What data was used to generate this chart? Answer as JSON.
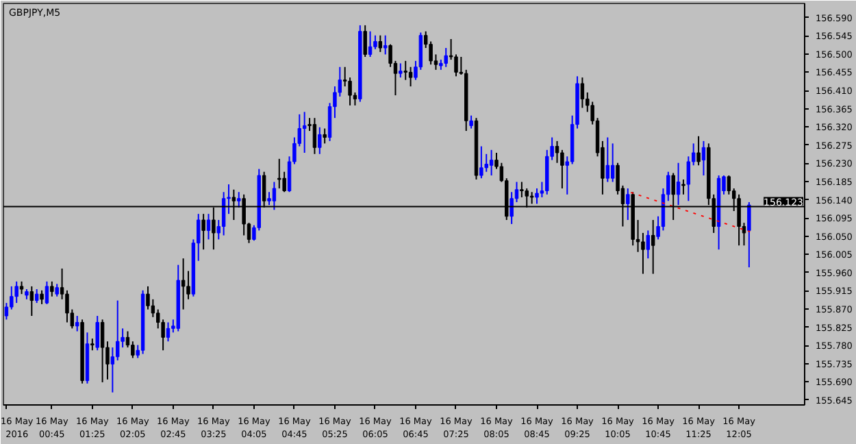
{
  "chart_data": {
    "type": "candlestick",
    "title": "GBPJPY,M5",
    "x": [
      "2016-05-16T00:00",
      "2016-05-16T00:05",
      "2016-05-16T00:10",
      "2016-05-16T00:15",
      "2016-05-16T00:20",
      "2016-05-16T00:25",
      "2016-05-16T00:30",
      "2016-05-16T00:35",
      "2016-05-16T00:40",
      "2016-05-16T00:45",
      "2016-05-16T00:50",
      "2016-05-16T00:55",
      "2016-05-16T01:00",
      "2016-05-16T01:05",
      "2016-05-16T01:10",
      "2016-05-16T01:15",
      "2016-05-16T01:20",
      "2016-05-16T01:25",
      "2016-05-16T01:30",
      "2016-05-16T01:35",
      "2016-05-16T01:40",
      "2016-05-16T01:45",
      "2016-05-16T01:50",
      "2016-05-16T01:55",
      "2016-05-16T02:00",
      "2016-05-16T02:05",
      "2016-05-16T02:10",
      "2016-05-16T02:15",
      "2016-05-16T02:20",
      "2016-05-16T02:25",
      "2016-05-16T02:30",
      "2016-05-16T02:35",
      "2016-05-16T02:40",
      "2016-05-16T02:45",
      "2016-05-16T02:50",
      "2016-05-16T02:55",
      "2016-05-16T03:00",
      "2016-05-16T03:05",
      "2016-05-16T03:10",
      "2016-05-16T03:15",
      "2016-05-16T03:20",
      "2016-05-16T03:25",
      "2016-05-16T03:30",
      "2016-05-16T03:35",
      "2016-05-16T03:40",
      "2016-05-16T03:45",
      "2016-05-16T03:50",
      "2016-05-16T03:55",
      "2016-05-16T04:00",
      "2016-05-16T04:05",
      "2016-05-16T04:10",
      "2016-05-16T04:15",
      "2016-05-16T04:20",
      "2016-05-16T04:25",
      "2016-05-16T04:30",
      "2016-05-16T04:35",
      "2016-05-16T04:40",
      "2016-05-16T04:45",
      "2016-05-16T04:50",
      "2016-05-16T04:55",
      "2016-05-16T05:00",
      "2016-05-16T05:05",
      "2016-05-16T05:10",
      "2016-05-16T05:15",
      "2016-05-16T05:20",
      "2016-05-16T05:25",
      "2016-05-16T05:30",
      "2016-05-16T05:35",
      "2016-05-16T05:40",
      "2016-05-16T05:45",
      "2016-05-16T05:50",
      "2016-05-16T05:55",
      "2016-05-16T06:00",
      "2016-05-16T06:05",
      "2016-05-16T06:10",
      "2016-05-16T06:15",
      "2016-05-16T06:20",
      "2016-05-16T06:25",
      "2016-05-16T06:30",
      "2016-05-16T06:35",
      "2016-05-16T06:40",
      "2016-05-16T06:45",
      "2016-05-16T06:50",
      "2016-05-16T06:55",
      "2016-05-16T07:00",
      "2016-05-16T07:05",
      "2016-05-16T07:10",
      "2016-05-16T07:15",
      "2016-05-16T07:20",
      "2016-05-16T07:25",
      "2016-05-16T07:30",
      "2016-05-16T07:35",
      "2016-05-16T07:40",
      "2016-05-16T07:45",
      "2016-05-16T07:50",
      "2016-05-16T07:55",
      "2016-05-16T08:00",
      "2016-05-16T08:05",
      "2016-05-16T08:10",
      "2016-05-16T08:15",
      "2016-05-16T08:20",
      "2016-05-16T08:25",
      "2016-05-16T08:30",
      "2016-05-16T08:35",
      "2016-05-16T08:40",
      "2016-05-16T08:45",
      "2016-05-16T08:50",
      "2016-05-16T08:55",
      "2016-05-16T09:00",
      "2016-05-16T09:05",
      "2016-05-16T09:10",
      "2016-05-16T09:15",
      "2016-05-16T09:20",
      "2016-05-16T09:25",
      "2016-05-16T09:30",
      "2016-05-16T09:35",
      "2016-05-16T09:40",
      "2016-05-16T09:45",
      "2016-05-16T09:50",
      "2016-05-16T09:55",
      "2016-05-16T10:00",
      "2016-05-16T10:05",
      "2016-05-16T10:10",
      "2016-05-16T10:15",
      "2016-05-16T10:20",
      "2016-05-16T10:25",
      "2016-05-16T10:30",
      "2016-05-16T10:35",
      "2016-05-16T10:40",
      "2016-05-16T10:45",
      "2016-05-16T10:50",
      "2016-05-16T10:55",
      "2016-05-16T11:00",
      "2016-05-16T11:05",
      "2016-05-16T11:10",
      "2016-05-16T11:15",
      "2016-05-16T11:20",
      "2016-05-16T11:25",
      "2016-05-16T11:30",
      "2016-05-16T11:35",
      "2016-05-16T11:40",
      "2016-05-16T11:45",
      "2016-05-16T11:50",
      "2016-05-16T11:55",
      "2016-05-16T12:00",
      "2016-05-16T12:05",
      "2016-05-16T12:10",
      "2016-05-16T12:15"
    ],
    "ohlc": [
      [
        155.853,
        155.885,
        155.844,
        155.875
      ],
      [
        155.875,
        155.926,
        155.869,
        155.901
      ],
      [
        155.901,
        155.938,
        155.885,
        155.926
      ],
      [
        155.926,
        155.938,
        155.907,
        155.919
      ],
      [
        155.904,
        155.919,
        155.894,
        155.913
      ],
      [
        155.913,
        155.926,
        155.853,
        155.891
      ],
      [
        155.891,
        155.919,
        155.885,
        155.907
      ],
      [
        155.907,
        155.916,
        155.882,
        155.894
      ],
      [
        155.885,
        155.938,
        155.882,
        155.926
      ],
      [
        155.926,
        155.938,
        155.901,
        155.913
      ],
      [
        155.907,
        155.932,
        155.901,
        155.923
      ],
      [
        155.923,
        155.97,
        155.894,
        155.907
      ],
      [
        155.907,
        155.916,
        155.837,
        155.86
      ],
      [
        155.86,
        155.869,
        155.822,
        155.828
      ],
      [
        155.828,
        155.853,
        155.815,
        155.837
      ],
      [
        155.837,
        155.844,
        155.686,
        155.693
      ],
      [
        155.693,
        155.812,
        155.686,
        155.784
      ],
      [
        155.784,
        155.797,
        155.768,
        155.781
      ],
      [
        155.775,
        155.853,
        155.768,
        155.837
      ],
      [
        155.837,
        155.844,
        155.689,
        155.775
      ],
      [
        155.775,
        155.79,
        155.696,
        155.734
      ],
      [
        155.734,
        155.775,
        155.664,
        155.752
      ],
      [
        155.752,
        155.891,
        155.743,
        155.79
      ],
      [
        155.79,
        155.822,
        155.775,
        155.8
      ],
      [
        155.8,
        155.815,
        155.775,
        155.781
      ],
      [
        155.781,
        155.79,
        155.749,
        155.756
      ],
      [
        155.756,
        155.781,
        155.749,
        155.768
      ],
      [
        155.768,
        155.916,
        155.759,
        155.907
      ],
      [
        155.907,
        155.926,
        155.869,
        155.878
      ],
      [
        155.878,
        155.894,
        155.85,
        155.86
      ],
      [
        155.86,
        155.869,
        155.822,
        155.837
      ],
      [
        155.837,
        155.844,
        155.768,
        155.8
      ],
      [
        155.8,
        155.837,
        155.79,
        155.822
      ],
      [
        155.822,
        155.844,
        155.812,
        155.828
      ],
      [
        155.822,
        155.979,
        155.815,
        155.941
      ],
      [
        155.941,
        155.995,
        155.869,
        155.926
      ],
      [
        155.926,
        155.964,
        155.894,
        155.907
      ],
      [
        155.907,
        156.042,
        155.901,
        156.033
      ],
      [
        156.033,
        156.105,
        155.989,
        156.09
      ],
      [
        156.09,
        156.105,
        156.017,
        156.064
      ],
      [
        156.064,
        156.105,
        156.042,
        156.09
      ],
      [
        156.09,
        156.121,
        156.017,
        156.058
      ],
      [
        156.058,
        156.09,
        156.042,
        156.074
      ],
      [
        156.074,
        156.159,
        156.052,
        156.143
      ],
      [
        156.143,
        156.178,
        156.105,
        156.146
      ],
      [
        156.146,
        156.165,
        156.09,
        156.137
      ],
      [
        156.137,
        156.159,
        156.121,
        156.143
      ],
      [
        156.143,
        156.153,
        156.052,
        156.08
      ],
      [
        156.08,
        156.083,
        156.033,
        156.042
      ],
      [
        156.042,
        156.077,
        156.039,
        156.071
      ],
      [
        156.071,
        156.216,
        156.064,
        156.2
      ],
      [
        156.2,
        156.209,
        156.121,
        156.137
      ],
      [
        156.137,
        156.159,
        156.127,
        156.143
      ],
      [
        156.137,
        156.184,
        156.115,
        156.168
      ],
      [
        156.193,
        156.241,
        156.168,
        156.19
      ],
      [
        156.193,
        156.209,
        156.159,
        156.162
      ],
      [
        156.162,
        156.247,
        156.159,
        156.234
      ],
      [
        156.234,
        156.294,
        156.228,
        156.279
      ],
      [
        156.279,
        156.351,
        156.272,
        156.316
      ],
      [
        156.316,
        156.357,
        156.256,
        156.323
      ],
      [
        156.326,
        156.342,
        156.31,
        156.323
      ],
      [
        156.326,
        156.342,
        156.253,
        156.269
      ],
      [
        156.269,
        156.319,
        156.253,
        156.301
      ],
      [
        156.301,
        156.316,
        156.279,
        156.294
      ],
      [
        156.294,
        156.379,
        156.285,
        156.37
      ],
      [
        156.37,
        156.42,
        156.342,
        156.405
      ],
      [
        156.405,
        156.468,
        156.395,
        156.436
      ],
      [
        156.436,
        156.468,
        156.42,
        156.433
      ],
      [
        156.433,
        156.442,
        156.373,
        156.398
      ],
      [
        156.398,
        156.405,
        156.373,
        156.389
      ],
      [
        156.389,
        156.571,
        156.382,
        156.556
      ],
      [
        156.556,
        156.571,
        156.493,
        156.499
      ],
      [
        156.499,
        156.556,
        156.493,
        156.518
      ],
      [
        156.518,
        156.546,
        156.512,
        156.531
      ],
      [
        156.531,
        156.546,
        156.505,
        156.515
      ],
      [
        156.515,
        156.546,
        156.499,
        156.521
      ],
      [
        156.521,
        156.524,
        156.468,
        156.477
      ],
      [
        156.477,
        156.483,
        156.398,
        156.452
      ],
      [
        156.452,
        156.477,
        156.442,
        156.458
      ],
      [
        156.458,
        156.483,
        156.436,
        156.455
      ],
      [
        156.455,
        156.468,
        156.42,
        156.442
      ],
      [
        156.442,
        156.483,
        156.436,
        156.468
      ],
      [
        156.468,
        156.553,
        156.461,
        156.546
      ],
      [
        156.546,
        156.556,
        156.515,
        156.524
      ],
      [
        156.524,
        156.531,
        156.474,
        156.483
      ],
      [
        156.483,
        156.499,
        156.461,
        156.474
      ],
      [
        156.471,
        156.486,
        156.461,
        156.477
      ],
      [
        156.477,
        156.515,
        156.468,
        156.496
      ],
      [
        156.496,
        156.537,
        156.486,
        156.493
      ],
      [
        156.493,
        156.499,
        156.445,
        156.455
      ],
      [
        156.455,
        156.493,
        156.449,
        156.452
      ],
      [
        156.452,
        156.461,
        156.31,
        156.335
      ],
      [
        156.323,
        156.348,
        156.316,
        156.335
      ],
      [
        156.335,
        156.342,
        156.19,
        156.2
      ],
      [
        156.2,
        156.272,
        156.193,
        156.219
      ],
      [
        156.219,
        156.253,
        156.209,
        156.228
      ],
      [
        156.225,
        156.263,
        156.2,
        156.238
      ],
      [
        156.238,
        156.256,
        156.216,
        156.222
      ],
      [
        156.222,
        156.231,
        156.184,
        156.187
      ],
      [
        156.187,
        156.193,
        156.09,
        156.099
      ],
      [
        156.099,
        156.159,
        156.08,
        156.143
      ],
      [
        156.143,
        156.184,
        156.134,
        156.165
      ],
      [
        156.165,
        156.184,
        156.146,
        156.162
      ],
      [
        156.162,
        156.168,
        156.121,
        156.149
      ],
      [
        156.149,
        156.159,
        156.13,
        156.146
      ],
      [
        156.146,
        156.168,
        156.13,
        156.156
      ],
      [
        156.156,
        156.184,
        156.146,
        156.162
      ],
      [
        156.162,
        156.263,
        156.153,
        156.247
      ],
      [
        156.247,
        156.294,
        156.238,
        156.272
      ],
      [
        156.272,
        156.285,
        156.231,
        156.256
      ],
      [
        156.256,
        156.263,
        156.168,
        156.225
      ],
      [
        156.225,
        156.247,
        156.153,
        156.234
      ],
      [
        156.234,
        156.348,
        156.228,
        156.326
      ],
      [
        156.326,
        156.445,
        156.316,
        156.427
      ],
      [
        156.427,
        156.442,
        156.367,
        156.389
      ],
      [
        156.389,
        156.405,
        156.357,
        156.373
      ],
      [
        156.373,
        156.382,
        156.326,
        156.335
      ],
      [
        156.335,
        156.342,
        156.247,
        156.256
      ],
      [
        156.269,
        156.285,
        156.153,
        156.193
      ],
      [
        156.193,
        156.294,
        156.184,
        156.225
      ],
      [
        156.193,
        156.279,
        156.184,
        156.225
      ],
      [
        156.225,
        156.231,
        156.153,
        156.162
      ],
      [
        156.168,
        156.175,
        156.074,
        156.13
      ],
      [
        156.13,
        156.168,
        156.09,
        156.153
      ],
      [
        156.153,
        156.159,
        156.027,
        156.042
      ],
      [
        156.042,
        156.09,
        156.011,
        156.036
      ],
      [
        156.036,
        156.058,
        155.957,
        156.017
      ],
      [
        156.017,
        156.064,
        155.995,
        156.052
      ],
      [
        156.052,
        156.09,
        155.957,
        156.027
      ],
      [
        156.049,
        156.099,
        156.042,
        156.074
      ],
      [
        156.074,
        156.168,
        156.064,
        156.153
      ],
      [
        156.153,
        156.209,
        156.137,
        156.2
      ],
      [
        156.2,
        156.206,
        156.09,
        156.153
      ],
      [
        156.153,
        156.231,
        156.127,
        156.184
      ],
      [
        156.178,
        156.19,
        156.153,
        156.175
      ],
      [
        156.178,
        156.247,
        156.137,
        156.234
      ],
      [
        156.234,
        156.279,
        156.225,
        156.256
      ],
      [
        156.256,
        156.297,
        156.225,
        156.234
      ],
      [
        156.238,
        156.285,
        156.2,
        156.269
      ],
      [
        156.269,
        156.279,
        156.127,
        156.143
      ],
      [
        156.143,
        156.153,
        156.058,
        156.074
      ],
      [
        156.074,
        156.2,
        156.017,
        156.193
      ],
      [
        156.162,
        156.2,
        156.153,
        156.197
      ],
      [
        156.197,
        156.2,
        156.153,
        156.162
      ],
      [
        156.162,
        156.168,
        156.112,
        156.143
      ],
      [
        156.143,
        156.153,
        156.027,
        156.074
      ],
      [
        156.074,
        156.083,
        156.027,
        156.058
      ],
      [
        156.064,
        156.134,
        155.973,
        156.127
      ]
    ],
    "colors": [
      "#0000ff",
      "#0000ff",
      "#0000ff",
      "#000000",
      "#0000ff",
      "#000000",
      "#0000ff",
      "#000000",
      "#0000ff",
      "#000000",
      "#0000ff",
      "#000000",
      "#000000",
      "#000000",
      "#0000ff",
      "#000000",
      "#0000ff",
      "#000000",
      "#0000ff",
      "#000000",
      "#000000",
      "#0000ff",
      "#0000ff",
      "#0000ff",
      "#000000",
      "#000000",
      "#0000ff",
      "#0000ff",
      "#000000",
      "#000000",
      "#000000",
      "#000000",
      "#0000ff",
      "#0000ff",
      "#0000ff",
      "#000000",
      "#000000",
      "#0000ff",
      "#0000ff",
      "#000000",
      "#0000ff",
      "#000000",
      "#0000ff",
      "#0000ff",
      "#0000ff",
      "#000000",
      "#0000ff",
      "#000000",
      "#000000",
      "#0000ff",
      "#0000ff",
      "#000000",
      "#0000ff",
      "#0000ff",
      "#000000",
      "#000000",
      "#0000ff",
      "#0000ff",
      "#0000ff",
      "#0000ff",
      "#000000",
      "#000000",
      "#0000ff",
      "#000000",
      "#0000ff",
      "#0000ff",
      "#0000ff",
      "#000000",
      "#000000",
      "#000000",
      "#0000ff",
      "#000000",
      "#0000ff",
      "#0000ff",
      "#000000",
      "#0000ff",
      "#000000",
      "#000000",
      "#0000ff",
      "#000000",
      "#000000",
      "#0000ff",
      "#0000ff",
      "#000000",
      "#000000",
      "#000000",
      "#0000ff",
      "#0000ff",
      "#000000",
      "#000000",
      "#000000",
      "#000000",
      "#0000ff",
      "#000000",
      "#0000ff",
      "#0000ff",
      "#0000ff",
      "#000000",
      "#000000",
      "#000000",
      "#0000ff",
      "#0000ff",
      "#000000",
      "#000000",
      "#000000",
      "#0000ff",
      "#0000ff",
      "#0000ff",
      "#0000ff",
      "#000000",
      "#000000",
      "#0000ff",
      "#0000ff",
      "#0000ff",
      "#000000",
      "#000000",
      "#000000",
      "#000000",
      "#000000",
      "#0000ff",
      "#0000ff",
      "#000000",
      "#000000",
      "#0000ff",
      "#000000",
      "#000000",
      "#000000",
      "#0000ff",
      "#000000",
      "#0000ff",
      "#0000ff",
      "#0000ff",
      "#000000",
      "#0000ff",
      "#000000",
      "#0000ff",
      "#0000ff",
      "#000000",
      "#0000ff",
      "#000000",
      "#000000",
      "#0000ff",
      "#0000ff",
      "#000000",
      "#000000",
      "#000000",
      "#000000",
      "#0000ff"
    ],
    "series": [
      {
        "type": "line",
        "x": [
          "2016-05-16T10:18",
          "2016-05-16T12:16"
        ],
        "values": [
          156.158,
          156.061
        ],
        "color": "#ff0000",
        "line_style": "dotted"
      }
    ],
    "ref_lines": [
      {
        "axis": "y",
        "value": 156.123,
        "label": "156.123",
        "color": "#000000"
      }
    ],
    "xlim": [
      "2016-05-15T23:57",
      "2016-05-16T13:10"
    ],
    "xticks": [
      {
        "value": "2016-05-16T00:00",
        "label": "16 May 2016"
      },
      {
        "value": "2016-05-16T00:45",
        "label": "16 May 00:45"
      },
      {
        "value": "2016-05-16T01:25",
        "label": "16 May 01:25"
      },
      {
        "value": "2016-05-16T02:05",
        "label": "16 May 02:05"
      },
      {
        "value": "2016-05-16T02:45",
        "label": "16 May 02:45"
      },
      {
        "value": "2016-05-16T03:25",
        "label": "16 May 03:25"
      },
      {
        "value": "2016-05-16T04:05",
        "label": "16 May 04:05"
      },
      {
        "value": "2016-05-16T04:45",
        "label": "16 May 04:45"
      },
      {
        "value": "2016-05-16T05:25",
        "label": "16 May 05:25"
      },
      {
        "value": "2016-05-16T06:05",
        "label": "16 May 06:05"
      },
      {
        "value": "2016-05-16T06:45",
        "label": "16 May 06:45"
      },
      {
        "value": "2016-05-16T07:25",
        "label": "16 May 07:25"
      },
      {
        "value": "2016-05-16T08:05",
        "label": "16 May 08:05"
      },
      {
        "value": "2016-05-16T08:45",
        "label": "16 May 08:45"
      },
      {
        "value": "2016-05-16T09:25",
        "label": "16 May 09:25"
      },
      {
        "value": "2016-05-16T10:05",
        "label": "16 May 10:05"
      },
      {
        "value": "2016-05-16T10:45",
        "label": "16 May 10:45"
      },
      {
        "value": "2016-05-16T11:25",
        "label": "16 May 11:25"
      },
      {
        "value": "2016-05-16T12:05",
        "label": "16 May 12:05"
      }
    ],
    "ylim": [
      155.633,
      156.625
    ],
    "yticks": [
      {
        "value": 156.59,
        "label": "156.590"
      },
      156.545,
      {
        "value": 156.5,
        "label": "156.500"
      },
      156.455,
      {
        "value": 156.41,
        "label": "156.410"
      },
      156.365,
      {
        "value": 156.32,
        "label": "156.320"
      },
      156.275,
      {
        "value": 156.23,
        "label": "156.230"
      },
      156.185,
      {
        "value": 156.14,
        "label": "156.140"
      },
      156.095,
      {
        "value": 156.05,
        "label": "156.050"
      },
      156.005,
      {
        "value": 155.96,
        "label": "155.960"
      },
      155.915,
      {
        "value": 155.87,
        "label": "155.870"
      },
      155.825,
      {
        "value": 155.78,
        "label": "155.780"
      },
      155.735,
      {
        "value": 155.69,
        "label": "155.690"
      },
      155.645
    ],
    "grid": false
  }
}
